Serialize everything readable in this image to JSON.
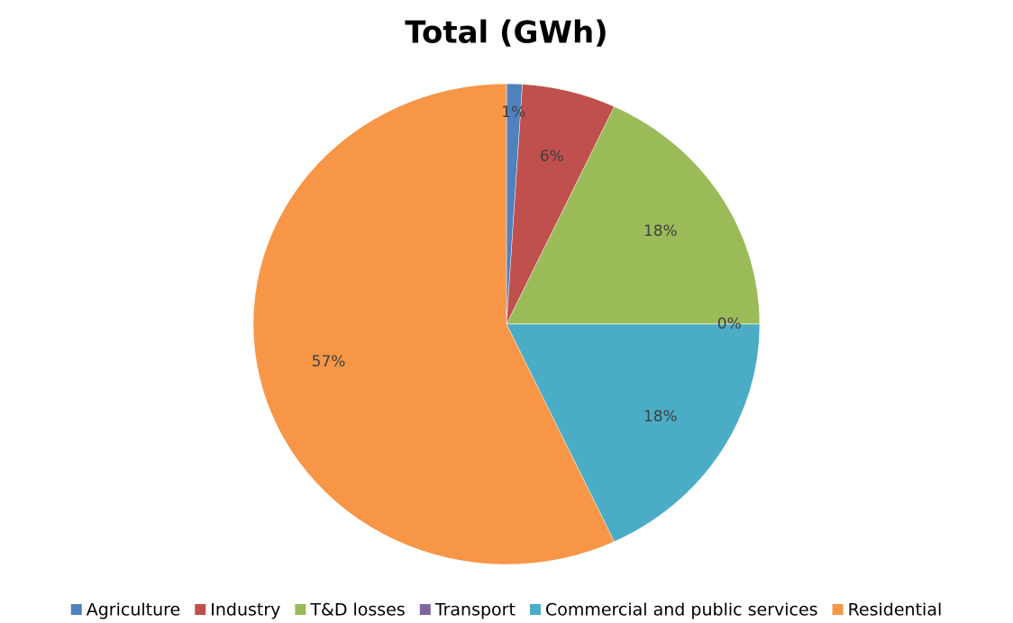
{
  "chart_data": {
    "type": "pie",
    "title": "Total (GWh)",
    "categories": [
      "Agriculture",
      "Industry",
      "T&D losses",
      "Transport",
      "Commercial and public services",
      "Residential"
    ],
    "values": [
      1,
      6,
      18,
      0,
      18,
      57
    ],
    "value_labels": [
      "1%",
      "6%",
      "18%",
      "0%",
      "18%",
      "57%"
    ],
    "colors": [
      "#4f81bd",
      "#c0504d",
      "#9bbb59",
      "#8064a2",
      "#4bacc6",
      "#f79646"
    ],
    "legend": "bottom"
  }
}
